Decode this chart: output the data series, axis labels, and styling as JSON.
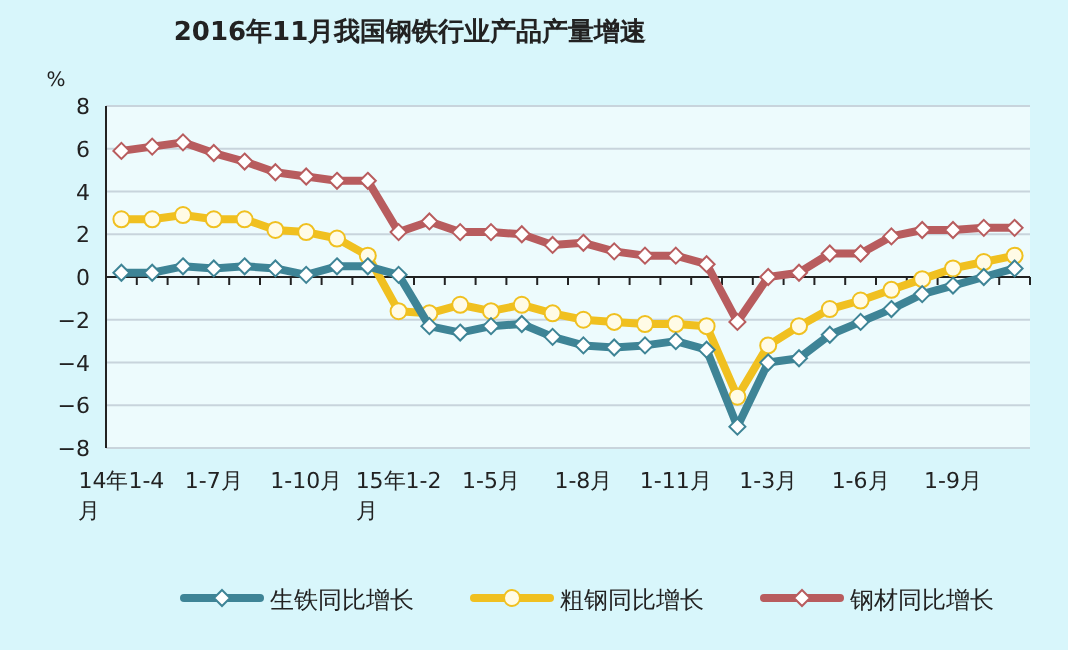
{
  "chart_data": {
    "type": "line",
    "title": "2016年11月我国钢铁行业产品产量增速",
    "ylabel": "%",
    "categories": [
      "14年1-4月",
      null,
      null,
      "1-7月",
      null,
      null,
      "1-10月",
      null,
      null,
      "15年1-2月",
      null,
      null,
      "1-5月",
      null,
      null,
      "1-8月",
      null,
      null,
      "1-11月",
      null,
      null,
      "1-3月",
      null,
      null,
      "1-6月",
      null,
      null,
      "1-9月",
      null,
      null
    ],
    "series": [
      {
        "name": "生铁同比增长",
        "color": "#3e8496",
        "marker": "diamond",
        "values": [
          0.2,
          0.2,
          0.5,
          0.4,
          0.5,
          0.4,
          0.1,
          0.5,
          0.5,
          0.1,
          -2.3,
          -2.6,
          -2.3,
          -2.2,
          -2.8,
          -3.2,
          -3.3,
          -3.2,
          -3.0,
          -3.4,
          -7.0,
          -4.0,
          -3.8,
          -2.7,
          -2.1,
          -1.5,
          -0.8,
          -0.4,
          0.0,
          0.4
        ]
      },
      {
        "name": "粗钢同比增长",
        "color": "#f0c020",
        "marker": "circle",
        "values": [
          2.7,
          2.7,
          2.9,
          2.7,
          2.7,
          2.2,
          2.1,
          1.8,
          1.0,
          -1.6,
          -1.7,
          -1.3,
          -1.6,
          -1.3,
          -1.7,
          -2.0,
          -2.1,
          -2.2,
          -2.2,
          -2.3,
          -5.6,
          -3.2,
          -2.3,
          -1.5,
          -1.1,
          -0.6,
          -0.1,
          0.4,
          0.7,
          1.0
        ]
      },
      {
        "name": "钢材同比增长",
        "color": "#b85c5e",
        "marker": "diamond",
        "values": [
          5.9,
          6.1,
          6.3,
          5.8,
          5.4,
          4.9,
          4.7,
          4.5,
          4.5,
          2.1,
          2.6,
          2.1,
          2.1,
          2.0,
          1.5,
          1.6,
          1.2,
          1.0,
          1.0,
          0.6,
          -2.1,
          0.0,
          0.2,
          1.1,
          1.1,
          1.9,
          2.2,
          2.2,
          2.3,
          2.3
        ]
      }
    ],
    "ylim": [
      -8,
      8
    ],
    "yticks": [
      -8,
      -6,
      -4,
      -2,
      0,
      2,
      4,
      6,
      8
    ],
    "grid": "y",
    "legend": "bottom"
  }
}
